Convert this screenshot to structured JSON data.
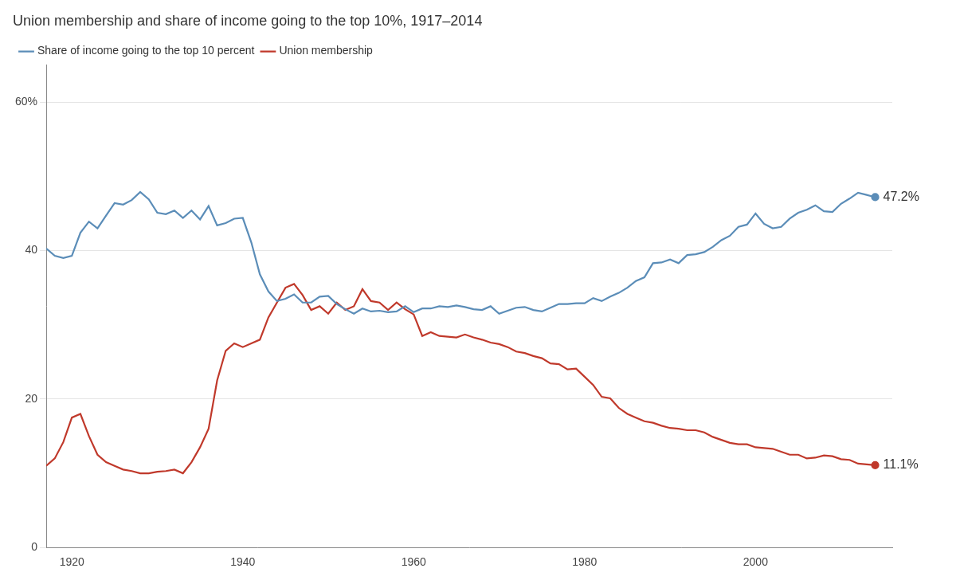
{
  "chart_data": {
    "type": "line",
    "title": "Union membership and share of income going to the top 10%, 1917–2014",
    "x": [
      1917,
      1918,
      1919,
      1920,
      1921,
      1922,
      1923,
      1924,
      1925,
      1926,
      1927,
      1928,
      1929,
      1930,
      1931,
      1932,
      1933,
      1934,
      1935,
      1936,
      1937,
      1938,
      1939,
      1940,
      1941,
      1942,
      1943,
      1944,
      1945,
      1946,
      1947,
      1948,
      1949,
      1950,
      1951,
      1952,
      1953,
      1954,
      1955,
      1956,
      1957,
      1958,
      1959,
      1960,
      1961,
      1962,
      1963,
      1964,
      1965,
      1966,
      1967,
      1968,
      1969,
      1970,
      1971,
      1972,
      1973,
      1974,
      1975,
      1976,
      1977,
      1978,
      1979,
      1980,
      1981,
      1982,
      1983,
      1984,
      1985,
      1986,
      1987,
      1988,
      1989,
      1990,
      1991,
      1992,
      1993,
      1994,
      1995,
      1996,
      1997,
      1998,
      1999,
      2000,
      2001,
      2002,
      2003,
      2004,
      2005,
      2006,
      2007,
      2008,
      2009,
      2010,
      2011,
      2012,
      2013,
      2014
    ],
    "series": [
      {
        "name": "Share of income going to the top 10 percent",
        "color": "#5b8db8",
        "values": [
          40.3,
          39.3,
          39.0,
          39.3,
          42.4,
          43.9,
          43.0,
          44.7,
          46.4,
          46.2,
          46.8,
          47.9,
          46.9,
          45.1,
          44.9,
          45.4,
          44.4,
          45.4,
          44.2,
          46.0,
          43.4,
          43.7,
          44.3,
          44.4,
          41.1,
          36.8,
          34.5,
          33.2,
          33.5,
          34.1,
          33.0,
          33.0,
          33.8,
          33.9,
          32.8,
          32.1,
          31.5,
          32.2,
          31.8,
          31.9,
          31.7,
          31.8,
          32.5,
          31.7,
          32.2,
          32.2,
          32.5,
          32.4,
          32.6,
          32.4,
          32.1,
          32.0,
          32.5,
          31.5,
          31.9,
          32.3,
          32.4,
          32.0,
          31.8,
          32.3,
          32.8,
          32.8,
          32.9,
          32.9,
          33.6,
          33.2,
          33.8,
          34.3,
          35.0,
          35.9,
          36.4,
          38.3,
          38.4,
          38.8,
          38.3,
          39.4,
          39.5,
          39.8,
          40.5,
          41.4,
          42.0,
          43.2,
          43.5,
          45.0,
          43.6,
          43.0,
          43.2,
          44.3,
          45.1,
          45.5,
          46.1,
          45.3,
          45.2,
          46.3,
          47.0,
          47.8,
          47.5,
          47.2
        ]
      },
      {
        "name": "Union membership",
        "color": "#c0392b",
        "values": [
          11.0,
          12.0,
          14.2,
          17.5,
          18.0,
          15.0,
          12.5,
          11.5,
          11.0,
          10.5,
          10.3,
          10.0,
          10.0,
          10.2,
          10.3,
          10.5,
          10.0,
          11.5,
          13.5,
          16.0,
          22.5,
          26.5,
          27.5,
          27.0,
          27.5,
          28.0,
          31.0,
          33.0,
          35.0,
          35.5,
          34.0,
          32.0,
          32.5,
          31.5,
          33.0,
          32.0,
          32.5,
          34.8,
          33.2,
          33.0,
          32.0,
          33.0,
          32.1,
          31.4,
          28.5,
          29.0,
          28.5,
          28.4,
          28.3,
          28.7,
          28.3,
          28.0,
          27.6,
          27.4,
          27.0,
          26.4,
          26.2,
          25.8,
          25.5,
          24.8,
          24.7,
          24.0,
          24.1,
          23.0,
          21.9,
          20.3,
          20.1,
          18.8,
          18.0,
          17.5,
          17.0,
          16.8,
          16.4,
          16.1,
          16.0,
          15.8,
          15.8,
          15.5,
          14.9,
          14.5,
          14.1,
          13.9,
          13.9,
          13.5,
          13.4,
          13.3,
          12.9,
          12.5,
          12.5,
          12.0,
          12.1,
          12.4,
          12.3,
          11.9,
          11.8,
          11.3,
          11.2,
          11.1
        ]
      }
    ],
    "xlim": [
      1917,
      2016
    ],
    "xticks": [
      1920,
      1940,
      1960,
      1980,
      2000
    ],
    "ylim": [
      0,
      65
    ],
    "yticks": [
      0,
      20,
      40,
      {
        "value": 60,
        "label": "60%"
      }
    ],
    "grid": "y",
    "legend": "upper left",
    "annotations": [
      {
        "text": "47.2%",
        "x": 2014,
        "y": 47.2
      },
      {
        "text": "11.1%",
        "x": 2014,
        "y": 11.1
      }
    ]
  }
}
